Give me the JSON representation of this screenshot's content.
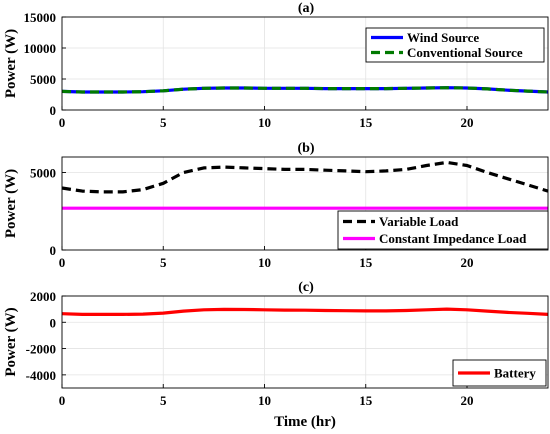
{
  "chart_data": [
    {
      "type": "line",
      "title": "(a)",
      "xlabel": "",
      "ylabel": "Power (W)",
      "xlim": [
        0,
        24
      ],
      "ylim": [
        0,
        15000
      ],
      "xticks": [
        0,
        5,
        10,
        15,
        20
      ],
      "yticks": [
        0,
        5000,
        10000,
        15000
      ],
      "grid": true,
      "legend_position": "top-right",
      "x": [
        0,
        1,
        2,
        3,
        4,
        5,
        6,
        7,
        8,
        9,
        10,
        11,
        12,
        13,
        14,
        15,
        16,
        17,
        18,
        19,
        20,
        21,
        22,
        23,
        24
      ],
      "series": [
        {
          "name": "Wind Source",
          "color": "#0000ff",
          "style": "solid",
          "values": [
            3000,
            2900,
            2900,
            2900,
            2950,
            3100,
            3350,
            3500,
            3550,
            3550,
            3500,
            3500,
            3500,
            3450,
            3450,
            3450,
            3450,
            3500,
            3550,
            3600,
            3550,
            3400,
            3200,
            3050,
            2900
          ]
        },
        {
          "name": "Conventional Source",
          "color": "#007a00",
          "style": "dashed",
          "values": [
            3000,
            2900,
            2900,
            2900,
            2950,
            3100,
            3350,
            3500,
            3550,
            3550,
            3500,
            3500,
            3500,
            3450,
            3450,
            3450,
            3450,
            3500,
            3550,
            3600,
            3550,
            3400,
            3200,
            3050,
            2900
          ]
        }
      ]
    },
    {
      "type": "line",
      "title": "(b)",
      "xlabel": "",
      "ylabel": "Power (W)",
      "xlim": [
        0,
        24
      ],
      "ylim": [
        0,
        6000
      ],
      "xticks": [
        0,
        5,
        10,
        15,
        20
      ],
      "yticks": [
        0,
        5000
      ],
      "grid": true,
      "legend_position": "bottom-right",
      "x": [
        0,
        1,
        2,
        3,
        4,
        5,
        6,
        7,
        8,
        9,
        10,
        11,
        12,
        13,
        14,
        15,
        16,
        17,
        18,
        19,
        20,
        21,
        22,
        23,
        24
      ],
      "series": [
        {
          "name": "Variable Load",
          "color": "#000000",
          "style": "dashed",
          "values": [
            4000,
            3800,
            3750,
            3750,
            3900,
            4300,
            5000,
            5300,
            5350,
            5300,
            5250,
            5200,
            5200,
            5150,
            5100,
            5050,
            5100,
            5200,
            5450,
            5650,
            5450,
            5000,
            4600,
            4200,
            3800
          ]
        },
        {
          "name": "Constant Impedance Load",
          "color": "#ff00ff",
          "style": "solid",
          "values": [
            2700,
            2700,
            2700,
            2700,
            2700,
            2700,
            2700,
            2700,
            2700,
            2700,
            2700,
            2700,
            2700,
            2700,
            2700,
            2700,
            2700,
            2700,
            2700,
            2700,
            2700,
            2700,
            2700,
            2700,
            2700
          ]
        }
      ]
    },
    {
      "type": "line",
      "title": "(c)",
      "xlabel": "Time (hr)",
      "ylabel": "Power (W)",
      "xlim": [
        0,
        24
      ],
      "ylim": [
        -5000,
        2000
      ],
      "xticks": [
        0,
        5,
        10,
        15,
        20
      ],
      "yticks": [
        -4000,
        -2000,
        0,
        2000
      ],
      "grid": true,
      "legend_position": "bottom-right",
      "x": [
        0,
        1,
        2,
        3,
        4,
        5,
        6,
        7,
        8,
        9,
        10,
        11,
        12,
        13,
        14,
        15,
        16,
        17,
        18,
        19,
        20,
        21,
        22,
        23,
        24
      ],
      "series": [
        {
          "name": "Battery",
          "color": "#ff0000",
          "style": "solid",
          "values": [
            650,
            600,
            600,
            600,
            620,
            700,
            850,
            950,
            980,
            970,
            950,
            930,
            920,
            900,
            880,
            870,
            870,
            900,
            950,
            1000,
            950,
            850,
            750,
            680,
            600
          ]
        }
      ]
    }
  ]
}
